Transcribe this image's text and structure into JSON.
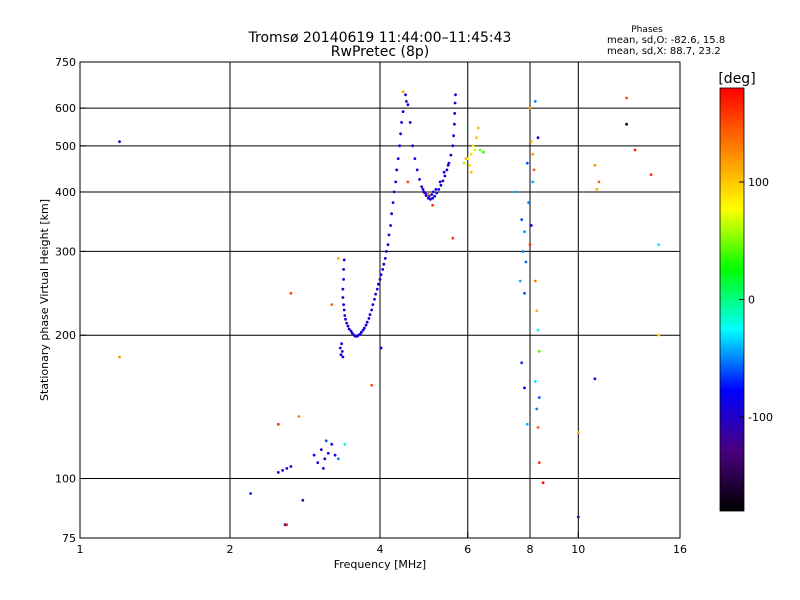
{
  "header": {
    "title": "Tromsø 20140619 11:44:00–11:45:43",
    "subtitle": "RwPretec (8p)"
  },
  "stats": {
    "heading": "Phases",
    "line_o": "mean, sd,O: -82.6, 15.8",
    "line_x": "mean, sd,X: 88.7, 23.2"
  },
  "colorbar": {
    "label": "[deg]",
    "ticks": [
      {
        "value": 100,
        "label": "100"
      },
      {
        "value": 0,
        "label": "0"
      },
      {
        "value": -100,
        "label": "-100"
      }
    ],
    "min": -180,
    "max": 180,
    "stops": [
      "#000000",
      "#4a0080",
      "#0000ff",
      "#00ffff",
      "#00ff00",
      "#ffff00",
      "#ff8000",
      "#ff0000"
    ]
  },
  "chart_data": {
    "type": "scatter",
    "xlabel": "Frequency [MHz]",
    "ylabel": "Stationary phase Virtual Height [km]",
    "xscale": "log",
    "yscale": "log",
    "xlim": [
      1,
      16
    ],
    "ylim": [
      75,
      750
    ],
    "xticks": [
      {
        "value": 1,
        "label": "1"
      },
      {
        "value": 2,
        "label": "2"
      },
      {
        "value": 4,
        "label": "4"
      },
      {
        "value": 6,
        "label": "6"
      },
      {
        "value": 8,
        "label": "8"
      },
      {
        "value": 10,
        "label": "10"
      },
      {
        "value": 16,
        "label": "16"
      }
    ],
    "yticks": [
      {
        "value": 75,
        "label": "75"
      },
      {
        "value": 100,
        "label": "100"
      },
      {
        "value": 200,
        "label": "200"
      },
      {
        "value": 300,
        "label": "300"
      },
      {
        "value": 400,
        "label": "400"
      },
      {
        "value": 500,
        "label": "500"
      },
      {
        "value": 600,
        "label": "600"
      },
      {
        "value": 750,
        "label": "750"
      }
    ],
    "grid": true,
    "grid_x": [
      2,
      4,
      6,
      8,
      10
    ],
    "grid_y": [
      100,
      200,
      300,
      400,
      500,
      600
    ],
    "color_variable": "phase [deg]",
    "points": [
      [
        4.5,
        640,
        -95
      ],
      [
        4.52,
        620,
        -90
      ],
      [
        4.45,
        590,
        -92
      ],
      [
        4.42,
        560,
        -88
      ],
      [
        4.4,
        530,
        -95
      ],
      [
        4.38,
        500,
        -90
      ],
      [
        4.35,
        470,
        -93
      ],
      [
        4.32,
        445,
        -91
      ],
      [
        4.3,
        420,
        -90
      ],
      [
        4.27,
        400,
        -94
      ],
      [
        4.25,
        380,
        -88
      ],
      [
        4.22,
        360,
        -92
      ],
      [
        4.2,
        340,
        -90
      ],
      [
        4.17,
        325,
        -95
      ],
      [
        4.15,
        310,
        -91
      ],
      [
        4.12,
        300,
        -89
      ],
      [
        4.1,
        290,
        -92
      ],
      [
        4.07,
        282,
        -94
      ],
      [
        4.05,
        275,
        -90
      ],
      [
        4.02,
        268,
        -93
      ],
      [
        4.0,
        262,
        -91
      ],
      [
        3.97,
        256,
        -90
      ],
      [
        3.95,
        250,
        -95
      ],
      [
        3.92,
        244,
        -92
      ],
      [
        3.9,
        238,
        -88
      ],
      [
        3.87,
        232,
        -90
      ],
      [
        3.85,
        226,
        -93
      ],
      [
        3.82,
        221,
        -91
      ],
      [
        3.8,
        217,
        -94
      ],
      [
        3.77,
        213,
        -90
      ],
      [
        3.75,
        210,
        -92
      ],
      [
        3.72,
        207,
        -89
      ],
      [
        3.7,
        205,
        -93
      ],
      [
        3.67,
        203,
        -90
      ],
      [
        3.65,
        201,
        -92
      ],
      [
        3.62,
        200,
        -95
      ],
      [
        3.6,
        199,
        -90
      ],
      [
        3.57,
        199,
        -91
      ],
      [
        3.55,
        200,
        -93
      ],
      [
        3.52,
        202,
        -88
      ],
      [
        3.5,
        204,
        -92
      ],
      [
        3.47,
        206,
        -94
      ],
      [
        3.45,
        209,
        -90
      ],
      [
        3.43,
        212,
        -91
      ],
      [
        3.41,
        216,
        -92
      ],
      [
        3.4,
        220,
        -95
      ],
      [
        3.39,
        226,
        -89
      ],
      [
        3.38,
        232,
        -91
      ],
      [
        3.37,
        240,
        -93
      ],
      [
        3.37,
        250,
        -90
      ],
      [
        3.38,
        262,
        -92
      ],
      [
        3.38,
        275,
        -94
      ],
      [
        3.39,
        288,
        -91
      ],
      [
        3.35,
        192,
        -90
      ],
      [
        3.33,
        188,
        -92
      ],
      [
        3.36,
        185,
        -94
      ],
      [
        3.34,
        182,
        -91
      ],
      [
        3.37,
        180,
        -95
      ],
      [
        4.55,
        610,
        -91
      ],
      [
        4.6,
        560,
        -93
      ],
      [
        4.65,
        500,
        -90
      ],
      [
        4.7,
        470,
        -92
      ],
      [
        4.75,
        445,
        -94
      ],
      [
        4.8,
        425,
        -91
      ],
      [
        4.85,
        410,
        -90
      ],
      [
        4.9,
        400,
        -93
      ],
      [
        4.95,
        393,
        -92
      ],
      [
        5.0,
        388,
        -89
      ],
      [
        5.05,
        386,
        -94
      ],
      [
        5.1,
        388,
        -90
      ],
      [
        5.15,
        392,
        -91
      ],
      [
        5.2,
        398,
        -93
      ],
      [
        5.25,
        405,
        -90
      ],
      [
        5.3,
        413,
        -92
      ],
      [
        5.35,
        422,
        -95
      ],
      [
        5.4,
        432,
        -90
      ],
      [
        5.45,
        445,
        -92
      ],
      [
        5.5,
        460,
        -91
      ],
      [
        5.55,
        478,
        -93
      ],
      [
        5.6,
        500,
        -90
      ],
      [
        5.62,
        525,
        -92
      ],
      [
        5.64,
        555,
        -94
      ],
      [
        5.65,
        585,
        -91
      ],
      [
        5.66,
        615,
        -93
      ],
      [
        5.67,
        640,
        -90
      ],
      [
        4.88,
        405,
        -88
      ],
      [
        4.92,
        398,
        -96
      ],
      [
        4.97,
        395,
        -91
      ],
      [
        5.02,
        392,
        -87
      ],
      [
        5.08,
        395,
        -93
      ],
      [
        5.12,
        400,
        -95
      ],
      [
        5.18,
        405,
        -89
      ],
      [
        5.28,
        420,
        -92
      ],
      [
        5.38,
        440,
        -94
      ],
      [
        5.48,
        455,
        -90
      ],
      [
        5.9,
        460,
        60
      ],
      [
        6.0,
        470,
        80
      ],
      [
        6.1,
        480,
        90
      ],
      [
        6.2,
        490,
        70
      ],
      [
        6.05,
        455,
        95
      ],
      [
        6.15,
        500,
        85
      ],
      [
        6.25,
        520,
        100
      ],
      [
        6.3,
        545,
        105
      ],
      [
        5.95,
        470,
        110
      ],
      [
        6.1,
        440,
        100
      ],
      [
        6.35,
        490,
        50
      ],
      [
        6.45,
        485,
        30
      ],
      [
        5.0,
        395,
        130
      ],
      [
        4.55,
        420,
        150
      ],
      [
        5.6,
        320,
        160
      ],
      [
        3.05,
        115,
        -100
      ],
      [
        3.1,
        110,
        -95
      ],
      [
        3.15,
        113,
        -90
      ],
      [
        3.2,
        118,
        -92
      ],
      [
        3.0,
        108,
        -96
      ],
      [
        3.08,
        105,
        -91
      ],
      [
        3.25,
        112,
        -88
      ],
      [
        3.12,
        120,
        -60
      ],
      [
        3.3,
        110,
        -50
      ],
      [
        2.95,
        112,
        -94
      ],
      [
        3.4,
        118,
        -20
      ],
      [
        2.6,
        105,
        -95
      ],
      [
        2.55,
        104,
        -90
      ],
      [
        2.65,
        106,
        -92
      ],
      [
        2.5,
        103,
        -80
      ],
      [
        2.58,
        80,
        -98
      ],
      [
        2.6,
        80,
        160
      ],
      [
        2.2,
        93,
        -70
      ],
      [
        2.8,
        90,
        -120
      ],
      [
        1.2,
        510,
        -110
      ],
      [
        1.2,
        180,
        120
      ],
      [
        2.65,
        245,
        150
      ],
      [
        2.5,
        130,
        160
      ],
      [
        2.75,
        135,
        130
      ],
      [
        3.2,
        232,
        140
      ],
      [
        3.3,
        290,
        110
      ],
      [
        3.85,
        157,
        150
      ],
      [
        4.02,
        188,
        -95
      ],
      [
        4.45,
        650,
        110
      ],
      [
        5.1,
        375,
        160
      ],
      [
        7.5,
        400,
        -40
      ],
      [
        7.7,
        350,
        -60
      ],
      [
        7.8,
        330,
        -45
      ],
      [
        7.75,
        300,
        -50
      ],
      [
        7.65,
        260,
        -40
      ],
      [
        7.8,
        245,
        -60
      ],
      [
        7.7,
        175,
        -70
      ],
      [
        7.8,
        155,
        -80
      ],
      [
        7.9,
        130,
        -40
      ],
      [
        8.0,
        600,
        120
      ],
      [
        8.05,
        510,
        110
      ],
      [
        8.1,
        480,
        120
      ],
      [
        8.2,
        620,
        -50
      ],
      [
        8.3,
        520,
        -100
      ],
      [
        8.15,
        445,
        140
      ],
      [
        8.1,
        420,
        -40
      ],
      [
        8.05,
        340,
        -80
      ],
      [
        8.2,
        260,
        130
      ],
      [
        8.25,
        225,
        110
      ],
      [
        8.3,
        205,
        -30
      ],
      [
        8.35,
        185,
        40
      ],
      [
        8.2,
        160,
        -30
      ],
      [
        8.35,
        148,
        -60
      ],
      [
        8.25,
        140,
        -50
      ],
      [
        8.3,
        128,
        140
      ],
      [
        8.35,
        108,
        160
      ],
      [
        8.5,
        98,
        170
      ],
      [
        7.9,
        460,
        -60
      ],
      [
        7.95,
        380,
        -50
      ],
      [
        7.85,
        285,
        -55
      ],
      [
        8.0,
        310,
        160
      ],
      [
        10.0,
        125,
        110
      ],
      [
        10.0,
        83,
        -120
      ],
      [
        10.8,
        455,
        120
      ],
      [
        10.9,
        405,
        110
      ],
      [
        10.8,
        162,
        -90
      ],
      [
        11.0,
        420,
        140
      ],
      [
        12.5,
        630,
        150
      ],
      [
        12.5,
        555,
        -170
      ],
      [
        13.0,
        490,
        165
      ],
      [
        14.0,
        435,
        160
      ],
      [
        14.5,
        310,
        -30
      ],
      [
        14.5,
        200,
        95
      ]
    ]
  }
}
